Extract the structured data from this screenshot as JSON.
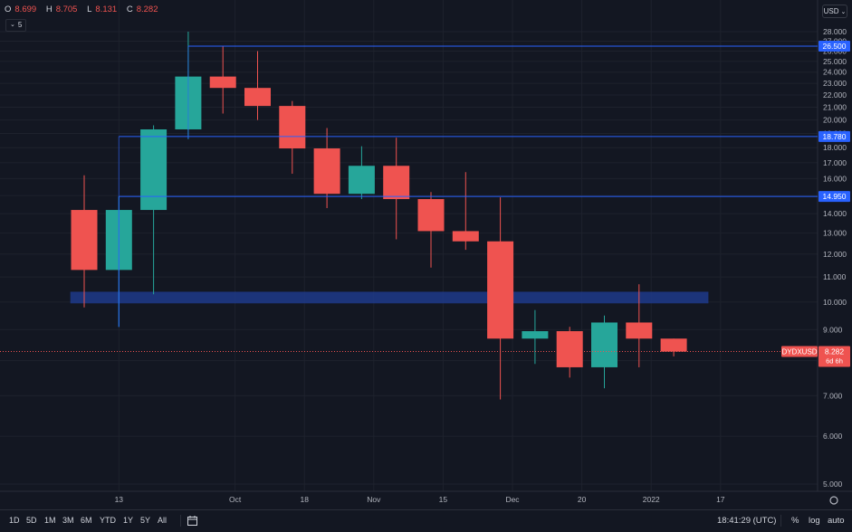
{
  "header": {
    "ohlc": {
      "o_label": "O",
      "o": "8.699",
      "h_label": "H",
      "h": "8.705",
      "l_label": "L",
      "l": "8.131",
      "c_label": "C",
      "c": "8.282"
    },
    "indicator_value": "5",
    "currency": "USD"
  },
  "colors": {
    "background": "#131722",
    "up": "#26a69a",
    "down": "#ef5350",
    "level_line": "#2962ff",
    "zone": "#1e3a8a",
    "grid": "#1e222d",
    "text": "#d1d4dc"
  },
  "chart_data": {
    "type": "candlestick",
    "symbol": "DYDXUSD",
    "last_price": "8.282",
    "countdown": "6d 6h",
    "y_scale": "log",
    "y_ticks": [
      "5.000",
      "6.000",
      "7.000",
      "8.000",
      "9.000",
      "10.000",
      "11.000",
      "12.000",
      "13.000",
      "14.000",
      "15.000",
      "16.000",
      "17.000",
      "18.000",
      "19.000",
      "20.000",
      "21.000",
      "22.000",
      "23.000",
      "24.000",
      "25.000",
      "26.000",
      "27.000",
      "28.000"
    ],
    "x_ticks": [
      {
        "label": "13",
        "index": 1
      },
      {
        "label": "Oct",
        "index": 4.35
      },
      {
        "label": "18",
        "index": 6.35
      },
      {
        "label": "Nov",
        "index": 8.35
      },
      {
        "label": "15",
        "index": 10.35
      },
      {
        "label": "Dec",
        "index": 12.35
      },
      {
        "label": "20",
        "index": 14.35
      },
      {
        "label": "2022",
        "index": 16.35
      },
      {
        "label": "17",
        "index": 18.35
      }
    ],
    "candles": [
      {
        "o": 14.2,
        "h": 16.2,
        "l": 9.8,
        "c": 11.3
      },
      {
        "o": 11.3,
        "h": 14.95,
        "l": 9.1,
        "c": 14.2
      },
      {
        "o": 14.2,
        "h": 19.6,
        "l": 10.3,
        "c": 19.3
      },
      {
        "o": 19.3,
        "h": 28.0,
        "l": 18.6,
        "c": 23.6
      },
      {
        "o": 23.6,
        "h": 26.5,
        "l": 20.5,
        "c": 22.6
      },
      {
        "o": 22.6,
        "h": 26.0,
        "l": 20.0,
        "c": 21.1
      },
      {
        "o": 21.1,
        "h": 21.5,
        "l": 16.3,
        "c": 17.95
      },
      {
        "o": 17.95,
        "h": 19.4,
        "l": 14.3,
        "c": 15.1
      },
      {
        "o": 15.1,
        "h": 18.1,
        "l": 14.8,
        "c": 16.8
      },
      {
        "o": 16.8,
        "h": 18.7,
        "l": 12.7,
        "c": 14.8
      },
      {
        "o": 14.8,
        "h": 15.2,
        "l": 11.4,
        "c": 13.1
      },
      {
        "o": 13.1,
        "h": 16.4,
        "l": 12.2,
        "c": 12.6
      },
      {
        "o": 12.6,
        "h": 14.9,
        "l": 6.9,
        "c": 8.7
      },
      {
        "o": 8.7,
        "h": 9.7,
        "l": 7.9,
        "c": 8.95
      },
      {
        "o": 8.95,
        "h": 9.1,
        "l": 7.5,
        "c": 7.8
      },
      {
        "o": 7.8,
        "h": 9.5,
        "l": 7.2,
        "c": 9.25
      },
      {
        "o": 9.25,
        "h": 10.7,
        "l": 7.8,
        "c": 8.7
      },
      {
        "o": 8.7,
        "h": 8.7,
        "l": 8.13,
        "c": 8.28
      }
    ],
    "levels": [
      {
        "value": 26.5,
        "label": "26.500",
        "from_index": 3
      },
      {
        "value": 18.78,
        "label": "18.780",
        "from_index": 1
      },
      {
        "value": 14.95,
        "label": "14.950",
        "from_index": 1
      }
    ],
    "zone": {
      "low": 9.95,
      "high": 10.4,
      "from_index": -0.4,
      "to_index": 18
    }
  },
  "toolbar": {
    "timeframes": [
      "1D",
      "5D",
      "1M",
      "3M",
      "6M",
      "YTD",
      "1Y",
      "5Y",
      "All"
    ],
    "time": "18:41:29 (UTC)",
    "percent": "%",
    "log": "log",
    "auto": "auto"
  }
}
